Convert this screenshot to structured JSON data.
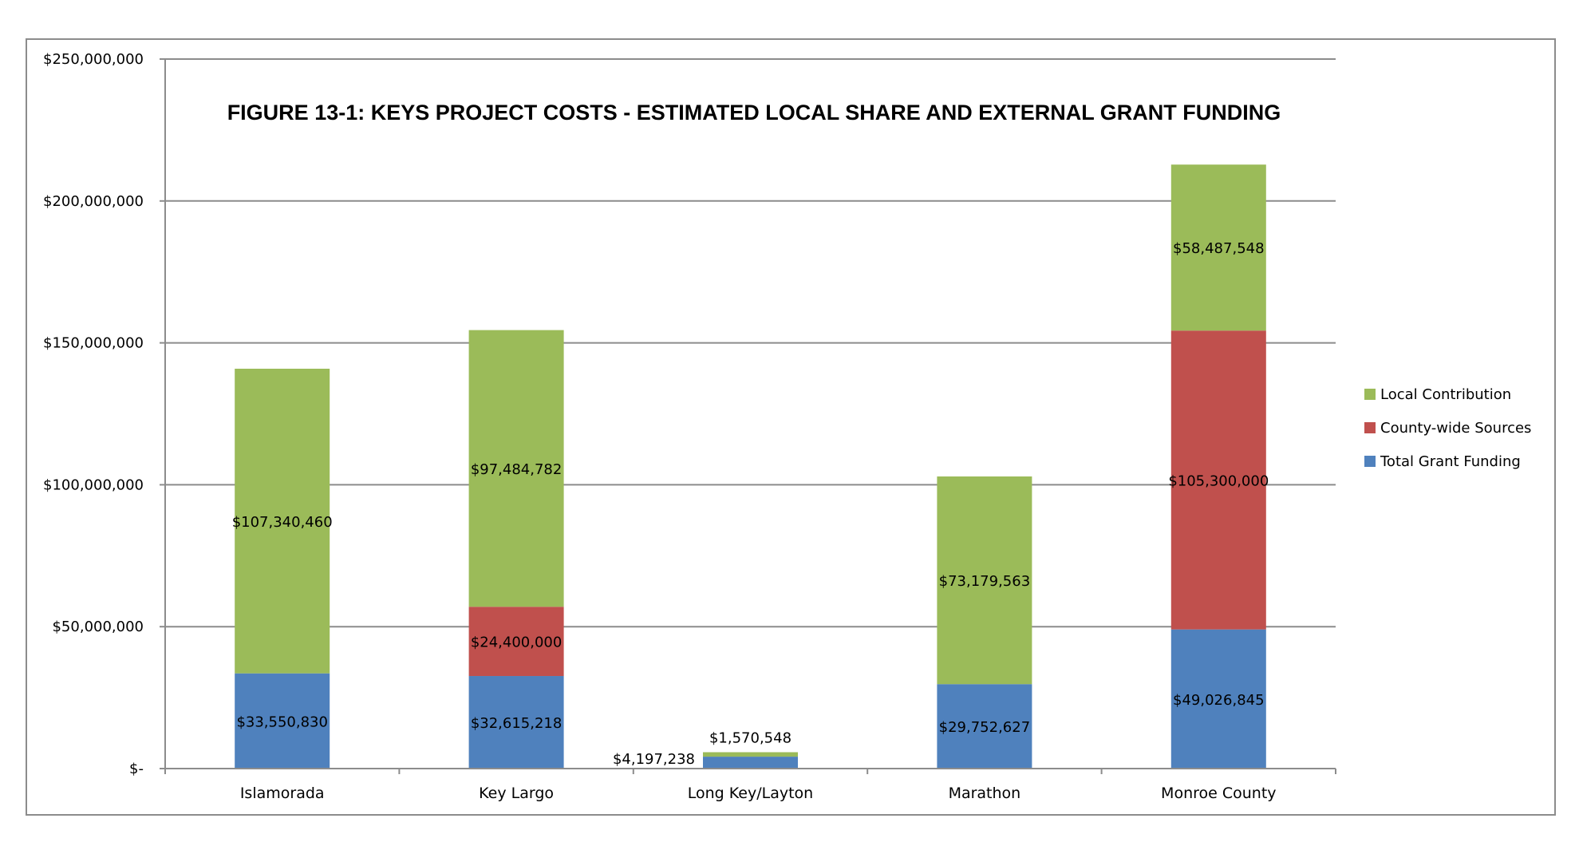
{
  "chart_data": {
    "type": "bar",
    "stacked": true,
    "title": "FIGURE 13-1:  KEYS PROJECT COSTS - ESTIMATED LOCAL SHARE AND EXTERNAL GRANT FUNDING",
    "xlabel": "",
    "ylabel": "",
    "ylim": [
      0,
      250000000
    ],
    "yticks": [
      0,
      50000000,
      100000000,
      150000000,
      200000000,
      250000000
    ],
    "ytick_labels": [
      "$-",
      "$50,000,000",
      "$100,000,000",
      "$150,000,000",
      "$200,000,000",
      "$250,000,000"
    ],
    "grid": true,
    "legend_position": "right",
    "categories": [
      "Islamorada",
      "Key Largo",
      "Long Key/Layton",
      "Marathon",
      "Monroe County"
    ],
    "series": [
      {
        "name": "Total Grant Funding",
        "color": "#4F81BD",
        "values": [
          33550830,
          32615218,
          4197238,
          29752627,
          49026845
        ],
        "labels": [
          "$33,550,830",
          "$32,615,218",
          "$4,197,238",
          "$29,752,627",
          "$49,026,845"
        ]
      },
      {
        "name": "County-wide Sources",
        "color": "#C0504D",
        "values": [
          0,
          24400000,
          0,
          0,
          105300000
        ],
        "labels": [
          "",
          "$24,400,000",
          "",
          "",
          "$105,300,000"
        ]
      },
      {
        "name": "Local Contribution",
        "color": "#9BBB59",
        "values": [
          107340460,
          97484782,
          1570548,
          73179563,
          58487548
        ],
        "labels": [
          "$107,340,460",
          "$97,484,782",
          "$1,570,548",
          "$73,179,563",
          "$58,487,548"
        ]
      }
    ],
    "legend_order": [
      "Local Contribution",
      "County-wide Sources",
      "Total Grant Funding"
    ]
  }
}
